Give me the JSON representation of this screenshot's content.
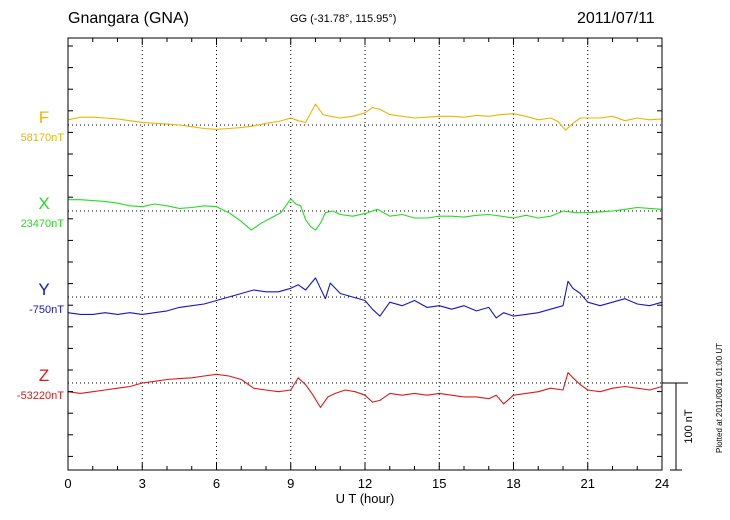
{
  "header": {
    "station": "Gnangara (GNA)",
    "coords": "GG (-31.78°, 115.95°)",
    "date": "2011/07/11"
  },
  "footer_note": "Plotted at 2011/08/11 01:00 UT",
  "colors": {
    "F": "#f0b400",
    "X": "#22dd22",
    "Y": "#1515cc",
    "Z": "#e01818",
    "axis": "#000000",
    "grid": "#000000"
  },
  "chart_data": {
    "type": "line",
    "xlabel": "U T (hour)",
    "xlim": [
      0,
      24
    ],
    "xticks": [
      "0",
      "3",
      "6",
      "9",
      "12",
      "15",
      "18",
      "21",
      "24"
    ],
    "scale_bar_label": "100 nT",
    "scale_bar_nT": 100,
    "series": [
      {
        "name": "F",
        "baseline_label": "58170nT",
        "color": "#f0b400",
        "x": [
          0,
          0.5,
          1,
          1.5,
          2,
          2.5,
          3,
          3.5,
          4,
          4.5,
          5,
          5.5,
          6,
          6.5,
          7,
          7.5,
          8,
          8.5,
          9,
          9.3,
          9.6,
          10,
          10.3,
          10.6,
          11,
          11.5,
          12,
          12.3,
          12.6,
          13,
          13.5,
          14,
          14.5,
          15,
          15.5,
          16,
          16.5,
          17,
          17.5,
          18,
          18.5,
          19,
          19.5,
          19.8,
          20.1,
          20.4,
          20.7,
          21,
          21.5,
          22,
          22.5,
          23,
          23.5,
          24
        ],
        "values": [
          6,
          9,
          9,
          8,
          7,
          5,
          3,
          2,
          1,
          0,
          -2,
          -4,
          -5,
          -4,
          -3,
          -1,
          2,
          4,
          8,
          5,
          3,
          24,
          12,
          10,
          8,
          10,
          14,
          20,
          18,
          12,
          10,
          8,
          9,
          10,
          10,
          9,
          11,
          10,
          12,
          13,
          10,
          6,
          8,
          4,
          -6,
          2,
          8,
          8,
          8,
          10,
          5,
          8,
          6,
          7
        ]
      },
      {
        "name": "X",
        "baseline_label": "23470nT",
        "color": "#22dd22",
        "x": [
          0,
          0.5,
          1,
          1.5,
          2,
          2.5,
          3,
          3.5,
          4,
          4.5,
          5,
          5.5,
          6,
          6.5,
          7,
          7.4,
          7.8,
          8.2,
          8.6,
          9,
          9.2,
          9.4,
          9.6,
          9.8,
          10,
          10.2,
          10.4,
          10.7,
          11,
          11.5,
          12,
          12.5,
          13,
          13.5,
          14,
          14.5,
          15,
          15.5,
          16,
          16.5,
          17,
          17.5,
          18,
          18.5,
          19,
          19.5,
          20,
          20.5,
          21,
          21.5,
          22,
          22.5,
          23,
          23.5,
          24
        ],
        "values": [
          13,
          13,
          12,
          11,
          9,
          6,
          5,
          8,
          6,
          3,
          4,
          6,
          5,
          -2,
          -12,
          -22,
          -14,
          -8,
          -2,
          14,
          8,
          6,
          -10,
          -18,
          -22,
          -14,
          -2,
          0,
          -4,
          -6,
          -3,
          2,
          -6,
          -4,
          -8,
          -8,
          -6,
          -6,
          -7,
          -5,
          -4,
          -6,
          -8,
          -5,
          -8,
          -6,
          0,
          -2,
          -2,
          -1,
          0,
          2,
          4,
          3,
          2
        ]
      },
      {
        "name": "Y",
        "baseline_label": "-750nT",
        "color": "#1515cc",
        "x": [
          0,
          0.5,
          1,
          1.5,
          2,
          2.5,
          3,
          3.5,
          4,
          4.5,
          5,
          5.5,
          6,
          6.5,
          7,
          7.5,
          8,
          8.5,
          9,
          9.3,
          9.6,
          10,
          10.2,
          10.4,
          10.6,
          11,
          11.5,
          12,
          12.3,
          12.6,
          13,
          13.5,
          14,
          14.5,
          15,
          15.5,
          16,
          16.5,
          17,
          17.3,
          17.6,
          18,
          18.5,
          19,
          19.5,
          20,
          20.2,
          20.4,
          20.7,
          21,
          21.5,
          22,
          22.5,
          23,
          23.5,
          24
        ],
        "values": [
          -18,
          -20,
          -20,
          -18,
          -20,
          -18,
          -20,
          -18,
          -16,
          -12,
          -10,
          -8,
          -4,
          0,
          4,
          8,
          6,
          6,
          10,
          14,
          8,
          22,
          10,
          -2,
          16,
          4,
          0,
          -4,
          -14,
          -22,
          -6,
          -10,
          -4,
          -12,
          -10,
          -14,
          -10,
          -16,
          -12,
          -24,
          -18,
          -22,
          -20,
          -18,
          -14,
          -10,
          18,
          10,
          4,
          -6,
          -10,
          -6,
          -2,
          -8,
          -10,
          -6
        ]
      },
      {
        "name": "Z",
        "baseline_label": "-53220nT",
        "color": "#e01818",
        "x": [
          0,
          0.5,
          1,
          1.5,
          2,
          2.5,
          3,
          3.5,
          4,
          4.5,
          5,
          5.5,
          6,
          6.5,
          7,
          7.5,
          8,
          8.5,
          9,
          9.3,
          9.6,
          9.9,
          10.2,
          10.5,
          10.8,
          11.2,
          11.6,
          12,
          12.3,
          12.6,
          13,
          13.5,
          14,
          14.5,
          15,
          15.5,
          16,
          16.5,
          17,
          17.3,
          17.6,
          18,
          18.5,
          19,
          19.5,
          20,
          20.2,
          20.4,
          20.7,
          21,
          21.5,
          22,
          22.5,
          23,
          23.5,
          24
        ],
        "values": [
          -10,
          -12,
          -10,
          -8,
          -6,
          -4,
          0,
          2,
          4,
          5,
          6,
          8,
          10,
          8,
          4,
          -6,
          -8,
          -10,
          -8,
          6,
          -2,
          -14,
          -28,
          -16,
          -12,
          -8,
          -10,
          -14,
          -22,
          -20,
          -12,
          -14,
          -12,
          -14,
          -12,
          -14,
          -16,
          -16,
          -18,
          -14,
          -24,
          -14,
          -12,
          -10,
          -6,
          -8,
          12,
          6,
          -2,
          -8,
          -10,
          -6,
          -4,
          -6,
          -8,
          -4
        ]
      }
    ],
    "grid": "dotted"
  }
}
